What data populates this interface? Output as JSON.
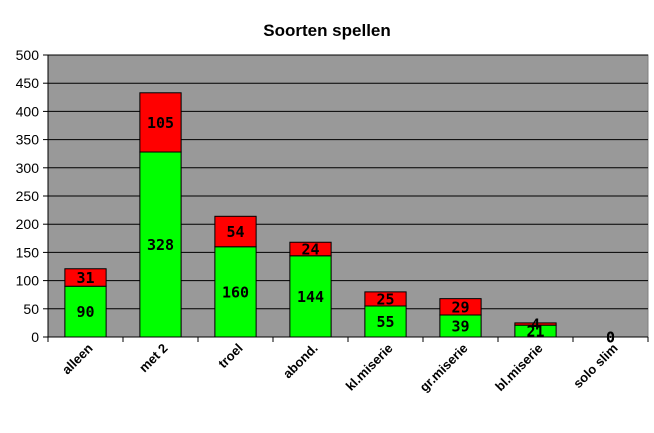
{
  "chart_data": {
    "type": "bar",
    "stacked": true,
    "title": "Soorten spellen",
    "xlabel": "",
    "ylabel": "",
    "categories": [
      "alleen",
      "met 2",
      "troel",
      "abond.",
      "kl.miserie",
      "gr.miserie",
      "bl.miserie",
      "solo slim"
    ],
    "series": [
      {
        "values": [
          90,
          328,
          160,
          144,
          55,
          39,
          21,
          0
        ],
        "color": "#00ff00"
      },
      {
        "values": [
          31,
          105,
          54,
          24,
          25,
          29,
          4,
          0
        ],
        "color": "#ff0000"
      }
    ],
    "ylim": [
      0,
      500
    ],
    "yticks": [
      0,
      50,
      100,
      150,
      200,
      250,
      300,
      350,
      400,
      450,
      500
    ],
    "plot_background": "#999999",
    "grid": true,
    "legend": "none"
  }
}
